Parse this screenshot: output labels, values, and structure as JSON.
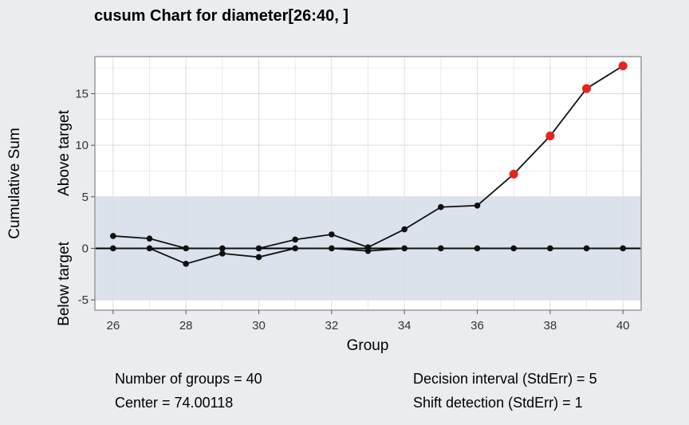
{
  "chart_data": {
    "type": "line",
    "title": "cusum Chart for diameter[26:40, ]",
    "xlabel": "Group",
    "ylabel": "Cumulative Sum",
    "ylabel_upper": "Above target",
    "ylabel_lower": "Below target",
    "xlim": [
      25.5,
      40.5
    ],
    "ylim": [
      -6,
      18.6
    ],
    "x_ticks": [
      26,
      28,
      30,
      32,
      34,
      36,
      38,
      40
    ],
    "y_ticks": [
      -5,
      0,
      5,
      10,
      15
    ],
    "grid": true,
    "decision_band": [
      -5,
      5
    ],
    "x": [
      26,
      27,
      28,
      29,
      30,
      31,
      32,
      33,
      34,
      35,
      36,
      37,
      38,
      39,
      40
    ],
    "series": [
      {
        "values": [
          1.2,
          0.95,
          0,
          0,
          0,
          0.85,
          1.35,
          0.1,
          1.85,
          4.0,
          4.15,
          7.2,
          10.9,
          15.5,
          17.7
        ],
        "out_of_control": [
          false,
          false,
          false,
          false,
          false,
          false,
          false,
          false,
          false,
          false,
          false,
          true,
          true,
          true,
          true
        ]
      },
      {
        "values": [
          0,
          0,
          -1.5,
          -0.5,
          -0.85,
          0,
          0,
          -0.25,
          0,
          0,
          0,
          0,
          0,
          0,
          0
        ],
        "out_of_control": [
          false,
          false,
          false,
          false,
          false,
          false,
          false,
          false,
          false,
          false,
          false,
          false,
          false,
          false,
          false
        ]
      }
    ],
    "colors": {
      "point": "#111111",
      "violation": "#e8231b",
      "band": "#dce2ec",
      "grid": "#dddddd",
      "line": "#000000"
    }
  },
  "stats": {
    "groups": "Number of groups = 40",
    "center": "Center = 74.00118",
    "decision_interval": "Decision interval (StdErr) = 5",
    "shift_detection": "Shift detection (StdErr) = 1"
  }
}
